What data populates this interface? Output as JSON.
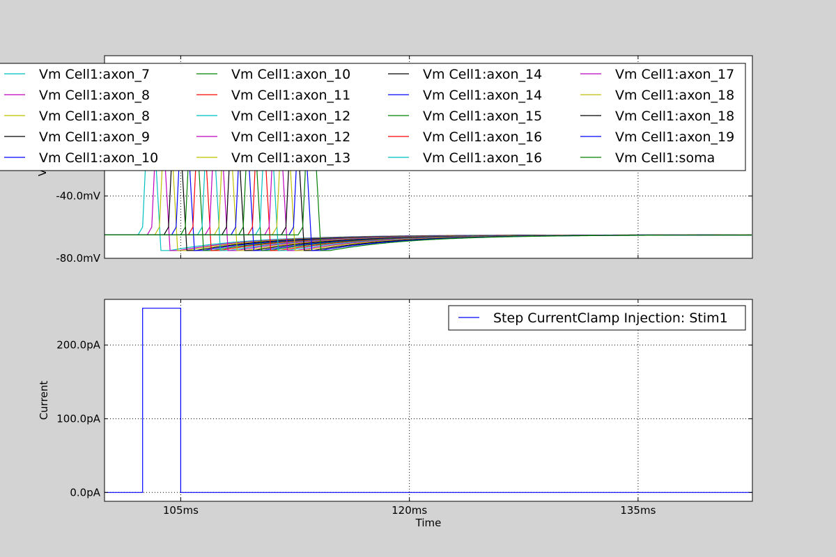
{
  "chart_data": [
    {
      "type": "line",
      "title": "",
      "xlabel": "",
      "ylabel": "V",
      "xlim": [
        100,
        142.5
      ],
      "ylim": [
        -80,
        50
      ],
      "xticks": [
        105,
        120,
        135
      ],
      "xtick_labels": [
        "",
        "",
        ""
      ],
      "yticks": [
        -80,
        -40
      ],
      "ytick_labels": [
        "-80.0mV",
        "-40.0mV"
      ],
      "grid": true,
      "legend": {
        "placement": "top",
        "columns": 4
      },
      "series": [
        {
          "name": "Vm Cell1:axon_7",
          "color": "#00bfbf"
        },
        {
          "name": "Vm Cell1:axon_8",
          "color": "#bf00bf"
        },
        {
          "name": "Vm Cell1:axon_8",
          "color": "#bfbf00"
        },
        {
          "name": "Vm Cell1:axon_9",
          "color": "#000000"
        },
        {
          "name": "Vm Cell1:axon_10",
          "color": "#0000ff"
        },
        {
          "name": "Vm Cell1:axon_10",
          "color": "#008000"
        },
        {
          "name": "Vm Cell1:axon_11",
          "color": "#ff0000"
        },
        {
          "name": "Vm Cell1:axon_12",
          "color": "#00bfbf"
        },
        {
          "name": "Vm Cell1:axon_12",
          "color": "#bf00bf"
        },
        {
          "name": "Vm Cell1:axon_13",
          "color": "#bfbf00"
        },
        {
          "name": "Vm Cell1:axon_14",
          "color": "#000000"
        },
        {
          "name": "Vm Cell1:axon_14",
          "color": "#0000ff"
        },
        {
          "name": "Vm Cell1:axon_15",
          "color": "#008000"
        },
        {
          "name": "Vm Cell1:axon_16",
          "color": "#ff0000"
        },
        {
          "name": "Vm Cell1:axon_16",
          "color": "#00bfbf"
        },
        {
          "name": "Vm Cell1:axon_17",
          "color": "#bf00bf"
        },
        {
          "name": "Vm Cell1:axon_18",
          "color": "#bfbf00"
        },
        {
          "name": "Vm Cell1:axon_18",
          "color": "#000000"
        },
        {
          "name": "Vm Cell1:axon_19",
          "color": "#0000ff"
        },
        {
          "name": "Vm Cell1:soma",
          "color": "#008000"
        }
      ],
      "baseline_mV": -65,
      "spike_onsets_ms": [
        102.5,
        103.1,
        103.6,
        104.2,
        104.7,
        105.3,
        105.8,
        106.4,
        106.9,
        107.5,
        108.0,
        108.6,
        109.1,
        109.7,
        110.2,
        110.8,
        111.3,
        111.9,
        112.4,
        113.0
      ],
      "afterhyperpolarization_mV": -75
    },
    {
      "type": "line",
      "title": "",
      "xlabel": "Time",
      "ylabel": "Current",
      "xlim": [
        100,
        142.5
      ],
      "ylim": [
        -12,
        262
      ],
      "xticks": [
        105,
        120,
        135
      ],
      "xtick_labels": [
        "105ms",
        "120ms",
        "135ms"
      ],
      "yticks": [
        0,
        100,
        200
      ],
      "ytick_labels": [
        "0.0pA",
        "100.0pA",
        "200.0pA"
      ],
      "grid": true,
      "legend": {
        "placement": "top-right"
      },
      "series": [
        {
          "name": "Step CurrentClamp Injection: Stim1",
          "color": "#0000ff",
          "x": [
            100,
            102.5,
            102.5,
            105,
            105,
            142.5
          ],
          "y": [
            0,
            0,
            250,
            250,
            0,
            0
          ]
        }
      ]
    }
  ]
}
